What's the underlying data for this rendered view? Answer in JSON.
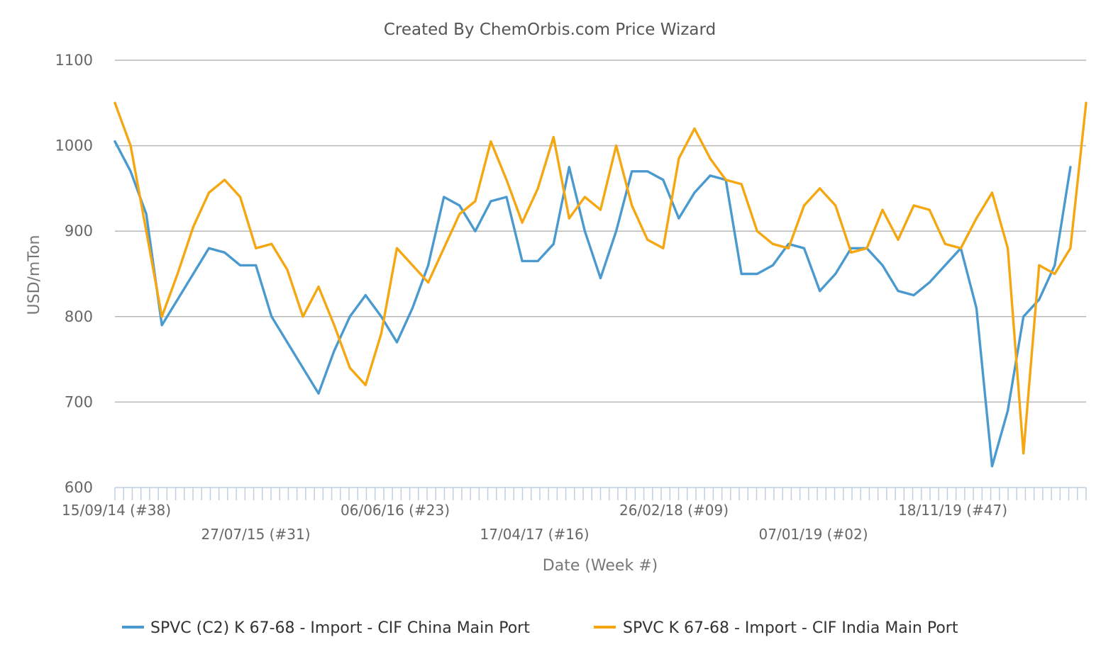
{
  "chart_data": {
    "type": "line",
    "title": "Created By ChemOrbis.com Price Wizard",
    "xlabel": "Date (Week #)",
    "ylabel": "USD/mTon",
    "ylim": [
      600,
      1100
    ],
    "yticks": [
      600,
      700,
      800,
      900,
      1000,
      1100
    ],
    "x_tick_labels": [
      "15/09/14 (#38)",
      "27/07/15 (#31)",
      "06/06/16 (#23)",
      "17/04/17 (#16)",
      "26/02/18 (#09)",
      "07/01/19 (#02)",
      "18/11/19 (#47)"
    ],
    "x": [
      "15/09/14",
      "20/10/14",
      "24/11/14",
      "29/12/14",
      "02/02/15",
      "09/03/15",
      "13/04/15",
      "18/05/15",
      "22/06/15",
      "27/07/15",
      "31/08/15",
      "05/10/15",
      "09/11/15",
      "14/12/15",
      "18/01/16",
      "22/02/16",
      "28/03/16",
      "02/05/16",
      "06/06/16",
      "11/07/16",
      "15/08/16",
      "19/09/16",
      "24/10/16",
      "28/11/16",
      "02/01/17",
      "06/02/17",
      "13/03/17",
      "17/04/17",
      "22/05/17",
      "26/06/17",
      "31/07/17",
      "04/09/17",
      "09/10/17",
      "13/11/17",
      "18/12/17",
      "22/01/18",
      "26/02/18",
      "02/04/18",
      "07/05/18",
      "11/06/18",
      "16/07/18",
      "20/08/18",
      "24/09/18",
      "29/10/18",
      "03/12/18",
      "07/01/19",
      "11/02/19",
      "18/03/19",
      "22/04/19",
      "27/05/19",
      "01/07/19",
      "05/08/19",
      "09/09/19",
      "14/10/19",
      "18/11/19",
      "23/12/19",
      "27/01/20",
      "02/03/20",
      "06/04/20",
      "11/05/20",
      "15/06/20",
      "20/07/20",
      "24/08/20",
      "28/09/20",
      "02/11/20",
      "07/12/20"
    ],
    "series": [
      {
        "name": "SPVC (C2) K 67-68 - Import - CIF China Main Port",
        "color": "#4a9ad0",
        "values": [
          1005,
          970,
          920,
          790,
          820,
          850,
          880,
          875,
          860,
          860,
          800,
          770,
          740,
          710,
          760,
          800,
          825,
          800,
          770,
          810,
          860,
          940,
          930,
          900,
          935,
          940,
          865,
          865,
          885,
          975,
          900,
          845,
          900,
          970,
          970,
          960,
          915,
          945,
          965,
          960,
          850,
          850,
          860,
          885,
          880,
          830,
          850,
          880,
          880,
          860,
          830,
          825,
          840,
          860,
          880,
          810,
          625,
          690,
          800,
          820,
          860,
          975,
          null,
          null,
          null,
          null
        ]
      },
      {
        "name": "SPVC K 67-68 - Import - CIF India Main Port",
        "color": "#f5a712",
        "values": [
          1050,
          1000,
          900,
          800,
          850,
          905,
          945,
          960,
          940,
          880,
          885,
          855,
          800,
          835,
          790,
          740,
          720,
          780,
          880,
          860,
          840,
          880,
          920,
          935,
          1005,
          960,
          910,
          950,
          1010,
          915,
          940,
          925,
          1000,
          930,
          890,
          880,
          985,
          1020,
          985,
          960,
          955,
          900,
          885,
          880,
          930,
          950,
          930,
          875,
          880,
          925,
          890,
          930,
          925,
          885,
          880,
          915,
          945,
          880,
          640,
          860,
          850,
          880,
          1050,
          null,
          null,
          null
        ]
      }
    ],
    "grid": true,
    "legend_position": "bottom"
  }
}
